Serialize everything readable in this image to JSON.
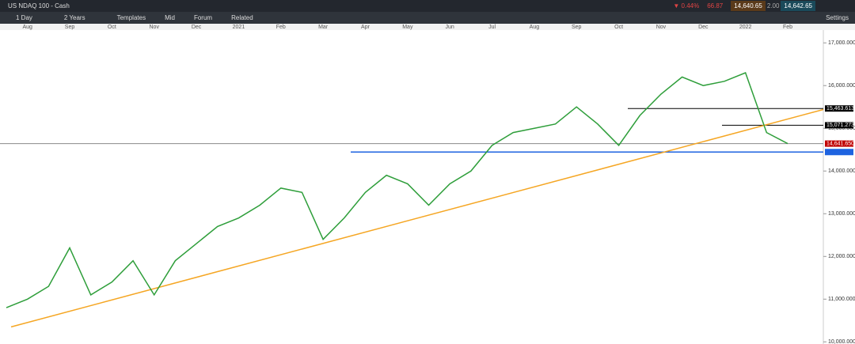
{
  "toolbar": {
    "instrument": "US NDAQ 100 - Cash",
    "interval": "1 Day",
    "range": "2 Years",
    "templates": "Templates",
    "price_mode": "Mid",
    "forum": "Forum",
    "related": "Related",
    "change_pct": "▼ 0.44%",
    "change_abs": "66.87",
    "sell": "14,640.65",
    "buy": "14,642.65",
    "spread": "2.00",
    "settings": "Settings"
  },
  "chart_data": {
    "type": "line",
    "color": "#2e9e3a",
    "categories": [
      null,
      "Aug",
      null,
      "Sep",
      null,
      "Oct",
      null,
      "Nov",
      null,
      "Dec",
      null,
      "2021",
      null,
      "Feb",
      null,
      "Mar",
      null,
      "Apr",
      null,
      "May",
      null,
      "Jun",
      null,
      "Jul",
      null,
      "Aug",
      null,
      "Sep",
      null,
      "Oct",
      null,
      "Nov",
      null,
      "Dec",
      null,
      "2022",
      null,
      "Feb"
    ],
    "values": [
      10800,
      11000,
      11300,
      12200,
      11100,
      11400,
      11900,
      11100,
      11900,
      12300,
      12700,
      12900,
      13200,
      13600,
      13500,
      12400,
      12900,
      13500,
      13900,
      13700,
      13200,
      13700,
      14000,
      14600,
      14900,
      15000,
      15100,
      15500,
      15100,
      14600,
      15300,
      15800,
      16200,
      16000,
      16100,
      16300,
      14900,
      14642
    ],
    "ylim": [
      9950,
      17300
    ],
    "yticks": [
      {
        "value": 10000,
        "label": "10,000.000"
      },
      {
        "value": 11000,
        "label": "11,000.000"
      },
      {
        "value": 12000,
        "label": "12,000.000"
      },
      {
        "value": 13000,
        "label": "13,000.000"
      },
      {
        "value": 14000,
        "label": "14,000.000"
      },
      {
        "value": 15000,
        "label": "15,000.000"
      },
      {
        "value": 16000,
        "label": "16,000.000"
      },
      {
        "value": 17000,
        "label": "17,000.000"
      }
    ],
    "trendline": {
      "color": "#f5a623",
      "values": [
        10350,
        15440
      ]
    },
    "levels": [
      {
        "value": 15463.613,
        "label": "15,463.613",
        "color": "#000000"
      },
      {
        "value": 15071.273,
        "label": "15,071.273",
        "color": "#000000"
      },
      {
        "value": 14641.65,
        "label": "14,641.650",
        "color": "#c00000"
      },
      {
        "value": 14444,
        "color": "#1e63e0"
      }
    ]
  }
}
